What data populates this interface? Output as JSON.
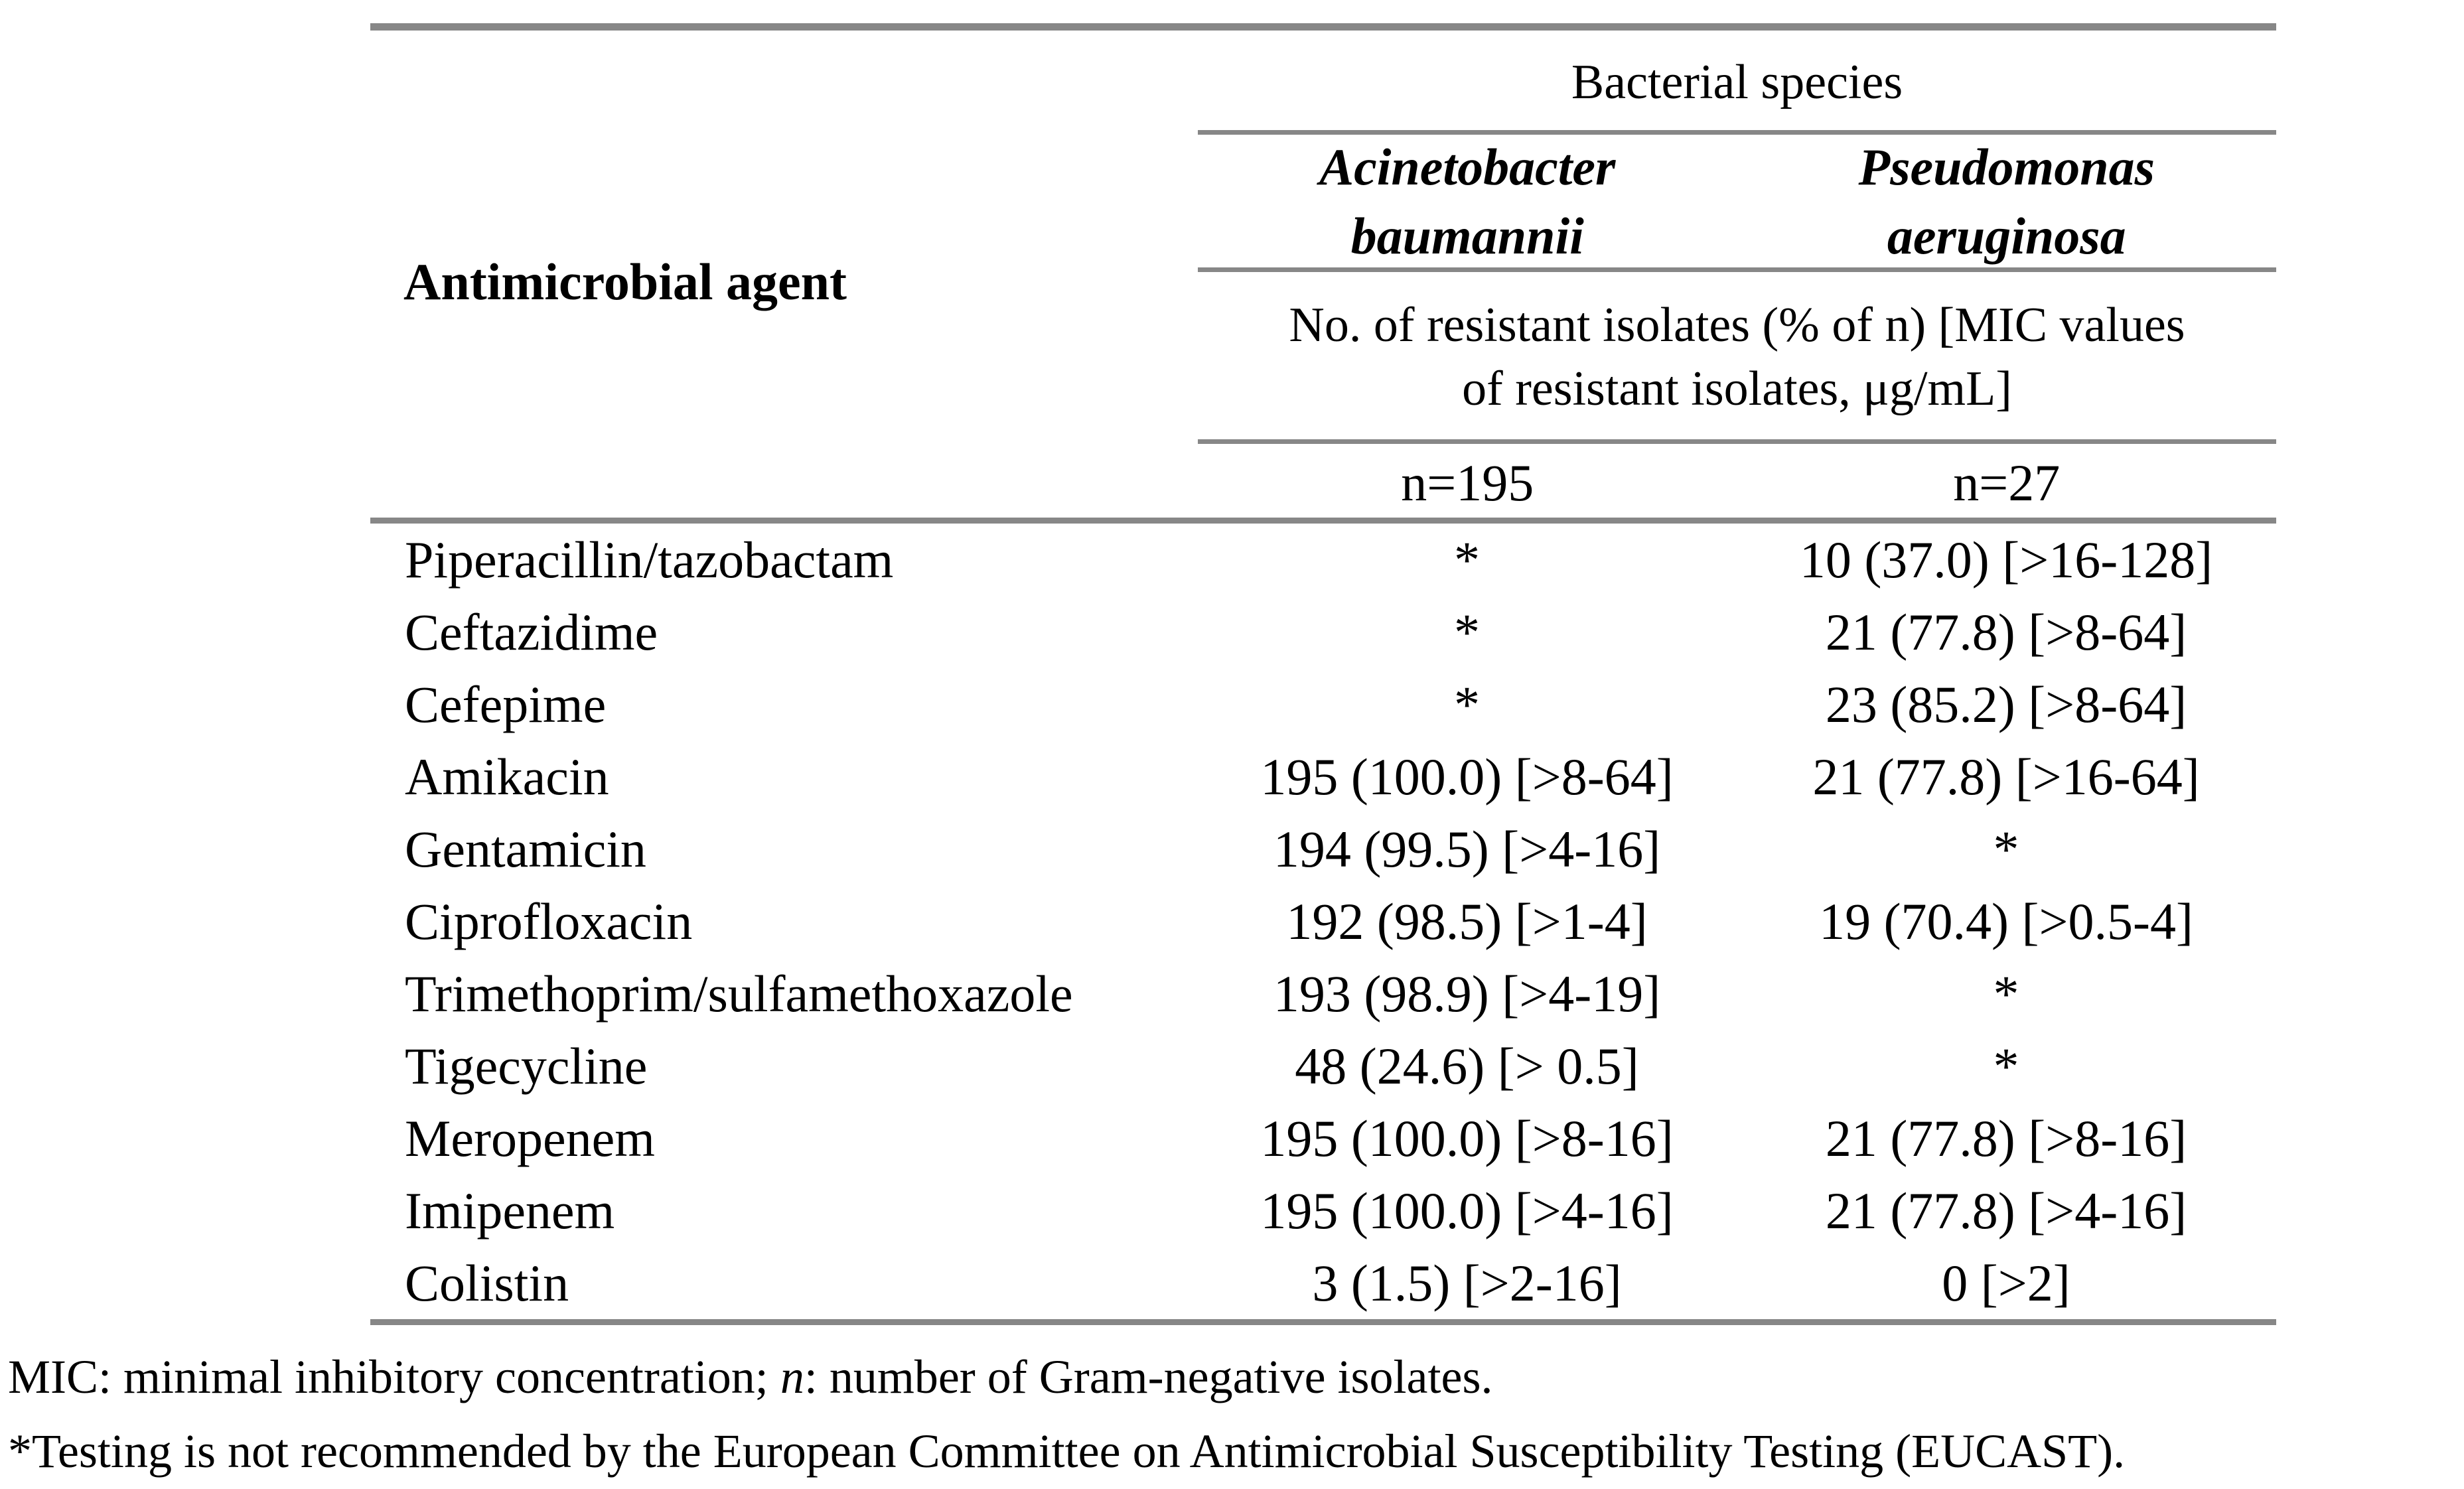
{
  "table": {
    "rule_color": "#878787",
    "agent_header": "Antimicrobial agent",
    "col_group_header": "Bacterial species",
    "species": [
      {
        "line1": "Acinetobacter",
        "line2": "baumannii"
      },
      {
        "line1": "Pseudomonas",
        "line2": "aeruginosa"
      }
    ],
    "measure_header_line1": "No. of resistant isolates (% of n) [MIC values",
    "measure_header_line2": "of resistant isolates, μg/mL]",
    "n_labels": [
      "n=195",
      "n=27"
    ],
    "rows": [
      {
        "agent": "Piperacillin/tazobactam",
        "ab": "*",
        "pa": "10 (37.0) [>16-128]"
      },
      {
        "agent": "Ceftazidime",
        "ab": "*",
        "pa": "21 (77.8) [>8-64]"
      },
      {
        "agent": "Cefepime",
        "ab": "*",
        "pa": "23 (85.2) [>8-64]"
      },
      {
        "agent": "Amikacin",
        "ab": "195 (100.0) [>8-64]",
        "pa": "21 (77.8) [>16-64]"
      },
      {
        "agent": "Gentamicin",
        "ab": "194 (99.5) [>4-16]",
        "pa": "*"
      },
      {
        "agent": "Ciprofloxacin",
        "ab": "192 (98.5) [>1-4]",
        "pa": "19 (70.4) [>0.5-4]"
      },
      {
        "agent": "Trimethoprim/sulfamethoxazole",
        "ab": "193 (98.9) [>4-19]",
        "pa": "*"
      },
      {
        "agent": "Tigecycline",
        "ab": "48 (24.6) [> 0.5]",
        "pa": "*"
      },
      {
        "agent": "Meropenem",
        "ab": "195 (100.0) [>8-16]",
        "pa": "21 (77.8) [>8-16]"
      },
      {
        "agent": "Imipenem",
        "ab": "195 (100.0) [>4-16]",
        "pa": "21 (77.8) [>4-16]"
      },
      {
        "agent": "Colistin",
        "ab": "3 (1.5) [>2-16]",
        "pa": "0 [>2]"
      }
    ],
    "footnotes": {
      "line1_pre": "MIC: minimal inhibitory concentration; ",
      "line1_italic": "n",
      "line1_post": ": number of Gram-negative isolates.",
      "line2": "*Testing is not recommended by the European Committee on Antimicrobial Susceptibility Testing (EUCAST)."
    }
  }
}
